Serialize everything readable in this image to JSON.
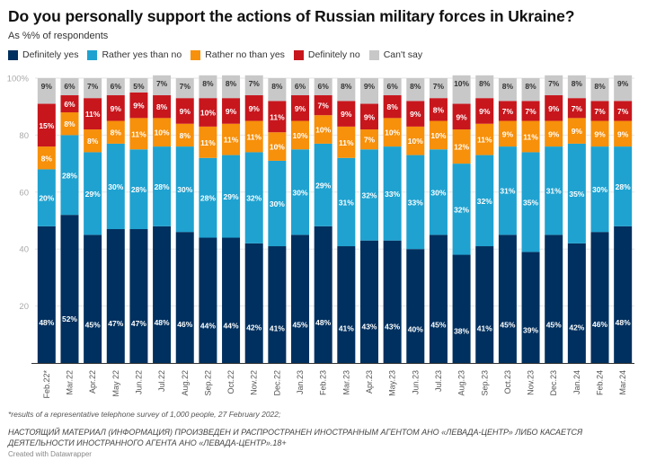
{
  "chart_data": {
    "type": "bar",
    "stacked": true,
    "orientation": "vertical",
    "title": "Do you personally support the actions of Russian military forces in Ukraine?",
    "subtitle": "As %% of respondents",
    "xlabel": "",
    "ylabel": "",
    "ylim": [
      0,
      100
    ],
    "yticks": [
      20,
      40,
      60,
      80,
      100
    ],
    "ytick_labels": [
      "20",
      "40",
      "60",
      "80",
      "100%"
    ],
    "grid": true,
    "legend_position": "top-left",
    "categories": [
      "Feb.22*",
      "Mar.22",
      "Apr.22",
      "May 22",
      "Jun.22",
      "Jul.22",
      "Aug.22",
      "Sep.22",
      "Oct.22",
      "Nov.22",
      "Dec.22",
      "Jan.23",
      "Feb.23",
      "Mar.23",
      "Apr.23",
      "May.23",
      "Jun.23",
      "Jul.23",
      "Aug.23",
      "Sep.23",
      "Oct.23",
      "Nov.23",
      "Dec.23",
      "Jan.24",
      "Feb.24",
      "Mar.24"
    ],
    "series": [
      {
        "name": "Definitely yes",
        "color": "#00305f",
        "label_color": "#ffffff",
        "values": [
          48,
          52,
          45,
          47,
          47,
          48,
          46,
          44,
          44,
          42,
          41,
          45,
          48,
          41,
          43,
          43,
          40,
          45,
          38,
          41,
          45,
          39,
          45,
          42,
          46,
          48
        ]
      },
      {
        "name": "Rather yes than no",
        "color": "#1fa2d0",
        "label_color": "#ffffff",
        "values": [
          20,
          28,
          29,
          30,
          28,
          28,
          30,
          28,
          29,
          32,
          30,
          30,
          29,
          31,
          32,
          33,
          33,
          30,
          32,
          32,
          31,
          35,
          31,
          35,
          30,
          28
        ]
      },
      {
        "name": "Rather no than yes",
        "color": "#f7900a",
        "label_color": "#ffffff",
        "values": [
          8,
          8,
          8,
          8,
          11,
          10,
          8,
          11,
          11,
          11,
          10,
          10,
          10,
          11,
          7,
          10,
          10,
          10,
          12,
          11,
          9,
          11,
          9,
          9,
          9,
          9
        ]
      },
      {
        "name": "Definitely no",
        "color": "#c8161d",
        "label_color": "#ffffff",
        "values": [
          15,
          6,
          11,
          9,
          9,
          8,
          9,
          10,
          9,
          9,
          11,
          9,
          7,
          9,
          9,
          8,
          9,
          8,
          9,
          9,
          7,
          7,
          9,
          7,
          7,
          7
        ]
      },
      {
        "name": "Can't say",
        "color": "#c8c8c8",
        "label_color": "#333333",
        "values": [
          9,
          6,
          7,
          6,
          5,
          7,
          7,
          8,
          8,
          7,
          8,
          6,
          6,
          8,
          9,
          6,
          8,
          7,
          10,
          8,
          8,
          8,
          7,
          8,
          8,
          9
        ]
      }
    ],
    "value_suffix": "%"
  },
  "footer": {
    "footnote": "*results of a representative telephone survey of 1,000 people, 27 February 2022;",
    "notice": "НАСТОЯЩИЙ МАТЕРИАЛ (ИНФОРМАЦИЯ) ПРОИЗВЕДЕН И РАСПРОСТРАНЕН ИНОСТРАННЫМ АГЕНТОМ АНО «ЛЕВАДА-ЦЕНТР» ЛИБО КАСАЕТСЯ ДЕЯТЕЛЬНОСТИ ИНОСТРАННОГО АГЕНТА АНО «ЛЕВАДА-ЦЕНТР».18+",
    "credit": "Created with Datawrapper"
  }
}
